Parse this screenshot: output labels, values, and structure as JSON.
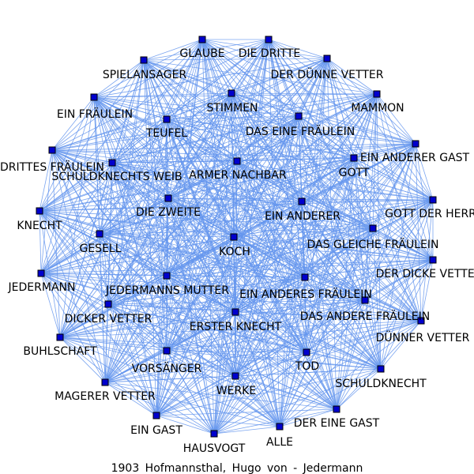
{
  "caption": "1903 Hofmannsthal, Hugo von - Jedermann",
  "colors": {
    "edge": "#6495ed",
    "node": "#0000cd"
  },
  "nodes": [
    {
      "id": "glaube",
      "label": "GLAUBE"
    },
    {
      "id": "die-dritte",
      "label": "DIE DRITTE"
    },
    {
      "id": "spielansager",
      "label": "SPIELANSAGER"
    },
    {
      "id": "der-duenne-vetter",
      "label": "DER DÜNNE VETTER"
    },
    {
      "id": "stimmen",
      "label": "STIMMEN"
    },
    {
      "id": "mammon",
      "label": "MAMMON"
    },
    {
      "id": "ein-fraeulein",
      "label": "EIN FRÄULEIN"
    },
    {
      "id": "das-eine-fraeulein",
      "label": "DAS EINE FRÄULEIN"
    },
    {
      "id": "teufel",
      "label": "TEUFEL"
    },
    {
      "id": "ein-anderer-gast",
      "label": "EIN ANDERER GAST"
    },
    {
      "id": "ein-drittes-fraeulein",
      "label": "EIN DRITTES FRÄULEIN"
    },
    {
      "id": "gott",
      "label": "GOTT"
    },
    {
      "id": "armer-nachbar",
      "label": "ARMER NACHBAR"
    },
    {
      "id": "schuldknechts-weib",
      "label": "SCHULDKNECHTS WEIB"
    },
    {
      "id": "die-zweite",
      "label": "DIE ZWEITE"
    },
    {
      "id": "ein-anderer",
      "label": "EIN ANDERER"
    },
    {
      "id": "gott-der-herr",
      "label": "GOTT DER HERR"
    },
    {
      "id": "knecht",
      "label": "KNECHT"
    },
    {
      "id": "das-gleiche-fraeulein",
      "label": "DAS GLEICHE FRÄULEIN"
    },
    {
      "id": "gesell",
      "label": "GESELL"
    },
    {
      "id": "koch",
      "label": "KOCH"
    },
    {
      "id": "der-dicke-vetter",
      "label": "DER DICKE VETTER"
    },
    {
      "id": "jedermann",
      "label": "JEDERMANN"
    },
    {
      "id": "jedermanns-mutter",
      "label": "JEDERMANNS MUTTER"
    },
    {
      "id": "ein-anderes-fraeulein",
      "label": "EIN ANDERES FRÄULEIN"
    },
    {
      "id": "dicker-vetter",
      "label": "DICKER VETTER"
    },
    {
      "id": "das-andere-fraeulein",
      "label": "DAS ANDERE FRÄULEIN"
    },
    {
      "id": "erster-knecht",
      "label": "ERSTER KNECHT"
    },
    {
      "id": "duenner-vetter",
      "label": "DÜNNER VETTER"
    },
    {
      "id": "buhlschaft",
      "label": "BUHLSCHAFT"
    },
    {
      "id": "tod",
      "label": "TOD"
    },
    {
      "id": "vorsaenger",
      "label": "VORSÄNGER"
    },
    {
      "id": "schuldknecht",
      "label": "SCHULDKNECHT"
    },
    {
      "id": "werke",
      "label": "WERKE"
    },
    {
      "id": "magerer-vetter",
      "label": "MAGERER VETTER"
    },
    {
      "id": "der-eine-gast",
      "label": "DER EINE GAST"
    },
    {
      "id": "ein-gast",
      "label": "EIN GAST"
    },
    {
      "id": "alle",
      "label": "ALLE"
    },
    {
      "id": "hausvogt",
      "label": "HAUSVOGT"
    }
  ]
}
